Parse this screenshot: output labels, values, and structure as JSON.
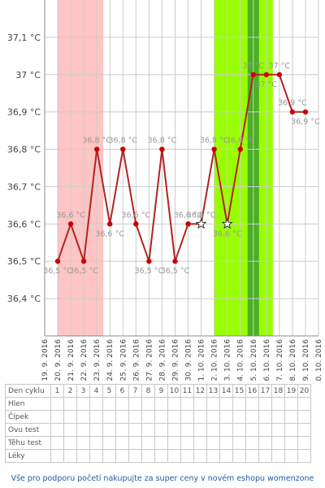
{
  "chart_data": {
    "type": "line",
    "title": "",
    "xlabel": "",
    "ylabel": "",
    "y_unit": "°C",
    "ylim": [
      36.3,
      37.2
    ],
    "y_ticks": [
      36.4,
      36.5,
      36.6,
      36.7,
      36.8,
      36.9,
      37.0,
      37.1
    ],
    "y_tick_labels": [
      "36,4 °C",
      "36,5 °C",
      "36,6 °C",
      "36,7 °C",
      "36,8 °C",
      "36,9 °C",
      "37 °C",
      "37,1 °C"
    ],
    "x_labels": [
      "19. 9. 2016",
      "20. 9. 2016",
      "21. 9. 2016",
      "22. 9. 2016",
      "23. 9. 2016",
      "24. 9. 2016",
      "25. 9. 2016",
      "26. 9. 2016",
      "27. 9. 2016",
      "28. 9. 2016",
      "29. 9. 2016",
      "30. 9. 2016",
      "1. 10. 2016",
      "2. 10. 2016",
      "3. 10. 2016",
      "4. 10. 2016",
      "5. 10. 2016",
      "6. 10. 2016",
      "7. 10. 2016",
      "8. 10. 2016",
      "9. 10. 2016",
      "10. 10. 2016"
    ],
    "grid": true,
    "color_line": "#b22222",
    "color_point": "#cc0000",
    "color_label": "#999999",
    "bands": [
      {
        "from": "20. 9. 2016",
        "to": "23. 9. 2016",
        "color": "#ffc4c4"
      },
      {
        "from": "2. 10. 2016",
        "to": "6. 10. 2016",
        "color": "#99ff00"
      },
      {
        "from": "5. 10. 2016",
        "to": "5. 10. 2016",
        "color": "#4caf25"
      }
    ],
    "series": [
      {
        "x": [
          "20. 9. 2016",
          "21. 9. 2016",
          "22. 9. 2016",
          "23. 9. 2016",
          "24. 9. 2016",
          "25. 9. 2016",
          "26. 9. 2016",
          "27. 9. 2016",
          "28. 9. 2016",
          "29. 9. 2016",
          "30. 9. 2016",
          "1. 10. 2016",
          "2. 10. 2016",
          "3. 10. 2016",
          "4. 10. 2016",
          "5. 10. 2016",
          "6. 10. 2016",
          "7. 10. 2016",
          "8. 10. 2016",
          "9. 10. 2016"
        ],
        "values": [
          36.5,
          36.6,
          36.5,
          36.8,
          36.6,
          36.8,
          36.6,
          36.5,
          36.8,
          36.5,
          36.6,
          36.6,
          36.8,
          36.6,
          36.8,
          37.0,
          37.0,
          37.0,
          36.9,
          36.9
        ],
        "labels": [
          "36,5 °C",
          "36,6 °C",
          "36,5 °C",
          "36,8 °C",
          "36,6 °C",
          "36,8 °C",
          "36,6 °C",
          "36,5 °C",
          "36,8 °C",
          "36,5 °C",
          "36,6 °C",
          "36,6 °C",
          "36,8 °C",
          "36,6 °C",
          "36,8 °C",
          "37 °C",
          "37 °C",
          "37 °C",
          "36,9 °C",
          "36,9 °C"
        ],
        "label_pos": [
          "below",
          "above",
          "below",
          "above",
          "below",
          "above",
          "above",
          "below",
          "above",
          "below",
          "above",
          "above",
          "above",
          "below",
          "above",
          "above",
          "below",
          "above",
          "above",
          "below"
        ],
        "markers": [
          "dot",
          "dot",
          "dot",
          "dot",
          "dot",
          "dot",
          "dot",
          "dot",
          "dot",
          "dot",
          "dot",
          "star",
          "dot",
          "star",
          "dot",
          "dot",
          "dot",
          "dot",
          "dot",
          "dot"
        ]
      }
    ]
  },
  "table": {
    "rows": [
      {
        "label": "Den cyklu",
        "cells": [
          "1",
          "2",
          "3",
          "4",
          "5",
          "6",
          "7",
          "8",
          "9",
          "10",
          "11",
          "12",
          "13",
          "14",
          "15",
          "16",
          "17",
          "18",
          "19",
          "20"
        ]
      },
      {
        "label": "Hlen",
        "cells": []
      },
      {
        "label": "Čípek",
        "cells": []
      },
      {
        "label": "Ovu test",
        "cells": []
      },
      {
        "label": "Těhu test",
        "cells": []
      },
      {
        "label": "Léky",
        "cells": []
      }
    ]
  },
  "footer": {
    "text": "Vše pro podporu početí nakupujte za super ceny v novém eshopu womenzone"
  }
}
